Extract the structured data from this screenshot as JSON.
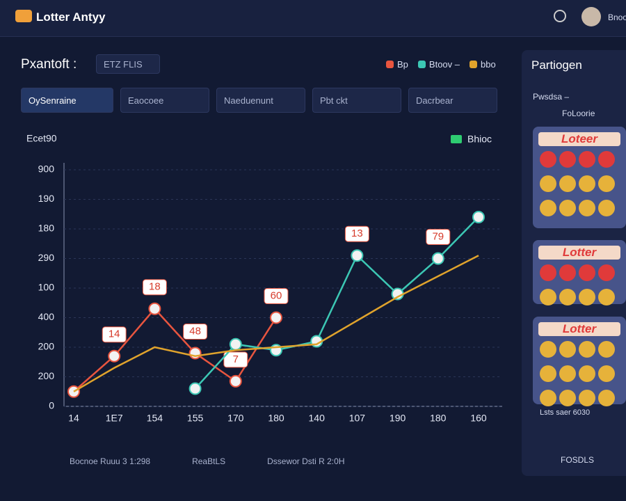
{
  "header": {
    "logo": "Lotter Antyy",
    "user": "Bnoo"
  },
  "panel": {
    "title": "Pxantoft :",
    "input": "ETZ FLIS",
    "legend": [
      "Bp",
      "Btoov –",
      "bbo"
    ],
    "filters": [
      "OySenraine",
      "Eaocoee",
      "Naeduenunt",
      "Pbt ckt",
      "Dacrbear"
    ]
  },
  "chart_data": {
    "type": "line",
    "y_label": "Ecet90",
    "legend_label": "Bhioc",
    "categories": [
      "14",
      "1E7",
      "154",
      "155",
      "170",
      "180",
      "140",
      "107",
      "190",
      "180",
      "160"
    ],
    "ylim": [
      0,
      8
    ],
    "yticks": [
      0,
      1,
      2,
      3,
      4,
      5,
      6,
      7,
      8
    ],
    "ytick_labels": [
      "0",
      "200",
      "200",
      "400",
      "100",
      "290",
      "180",
      "190",
      "900"
    ],
    "series": [
      {
        "name": "Bp",
        "color": "#e8553f",
        "values": [
          0.5,
          1.7,
          3.3,
          1.8,
          0.85,
          3.0,
          null,
          null,
          null,
          null,
          null
        ],
        "value_labels": [
          null,
          "14",
          "18",
          "48",
          "7",
          "60",
          null,
          null,
          null,
          null,
          null
        ]
      },
      {
        "name": "Btoov –",
        "color": "#3cc7b4",
        "values": [
          null,
          null,
          null,
          0.6,
          2.1,
          1.9,
          2.2,
          5.1,
          3.8,
          5.0,
          6.4
        ],
        "value_labels": [
          null,
          null,
          null,
          null,
          null,
          null,
          null,
          "13",
          null,
          "79",
          null
        ]
      },
      {
        "name": "bbo",
        "color": "#e0a32c",
        "values": [
          0.5,
          1.3,
          2.0,
          1.7,
          1.9,
          2.0,
          2.1,
          2.9,
          3.7,
          4.4,
          5.1
        ]
      }
    ]
  },
  "sidebar": {
    "title": "Partiogen",
    "sub1": "Pwsdsa –",
    "sub2": "FoLoorie",
    "cards": [
      "Loteer",
      "Lotter",
      "Lotter"
    ],
    "footer": "Lsts saer 6030",
    "pager": "FOSDLS"
  },
  "bottom": [
    "Bocnoe Ruuu 3 1:298",
    "ReaBtLS",
    "Dssewor Dsti R 2:0H"
  ]
}
